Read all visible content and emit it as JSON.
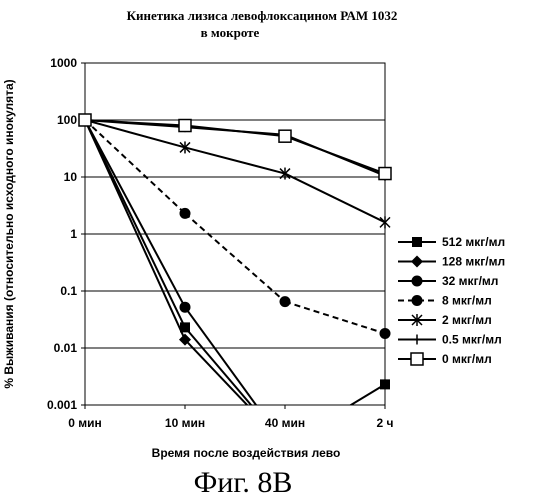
{
  "caption": "Фиг. 8В",
  "chart_data": {
    "type": "line",
    "title": "Кинетика лизиса левофлоксацином РАМ 1032",
    "subtitle": "в мокроте",
    "xlabel": "Время после воздействия лево",
    "ylabel": "% Выживания (относительно исходного инокулята)",
    "y_scale": "log",
    "ylim": [
      0.001,
      1000
    ],
    "y_ticks": [
      "1000",
      "100",
      "10",
      "1",
      "0.1",
      "0.01",
      "0.001"
    ],
    "categories": [
      "0 мин",
      "10 мин",
      "40 мин",
      "2 ч"
    ],
    "grid": true,
    "legend_position": "right",
    "series": [
      {
        "name": "512 мкг/мл",
        "marker": "square-filled",
        "dash": "solid",
        "values": [
          100,
          0.023,
          0.0002,
          0.0023
        ]
      },
      {
        "name": "128 мкг/мл",
        "marker": "diamond-filled",
        "dash": "solid",
        "values": [
          100,
          0.014,
          0.0002,
          null
        ]
      },
      {
        "name": "32 мкг/мл",
        "marker": "circle-filled",
        "dash": "solid",
        "values": [
          100,
          0.052,
          0.0002,
          null
        ]
      },
      {
        "name": "8 мкг/мл",
        "marker": "circle-filled",
        "dash": "dashed",
        "values": [
          100,
          2.3,
          0.065,
          0.018
        ]
      },
      {
        "name": "2 мкг/мл",
        "marker": "star",
        "dash": "solid",
        "values": [
          100,
          33,
          11.5,
          1.6
        ]
      },
      {
        "name": "0.5 мкг/мл",
        "marker": "plus",
        "dash": "solid",
        "values": [
          100,
          75,
          55,
          10.5
        ]
      },
      {
        "name": "0 мкг/мл",
        "marker": "square-open",
        "dash": "solid",
        "values": [
          100,
          80,
          52,
          11.5
        ]
      }
    ]
  }
}
